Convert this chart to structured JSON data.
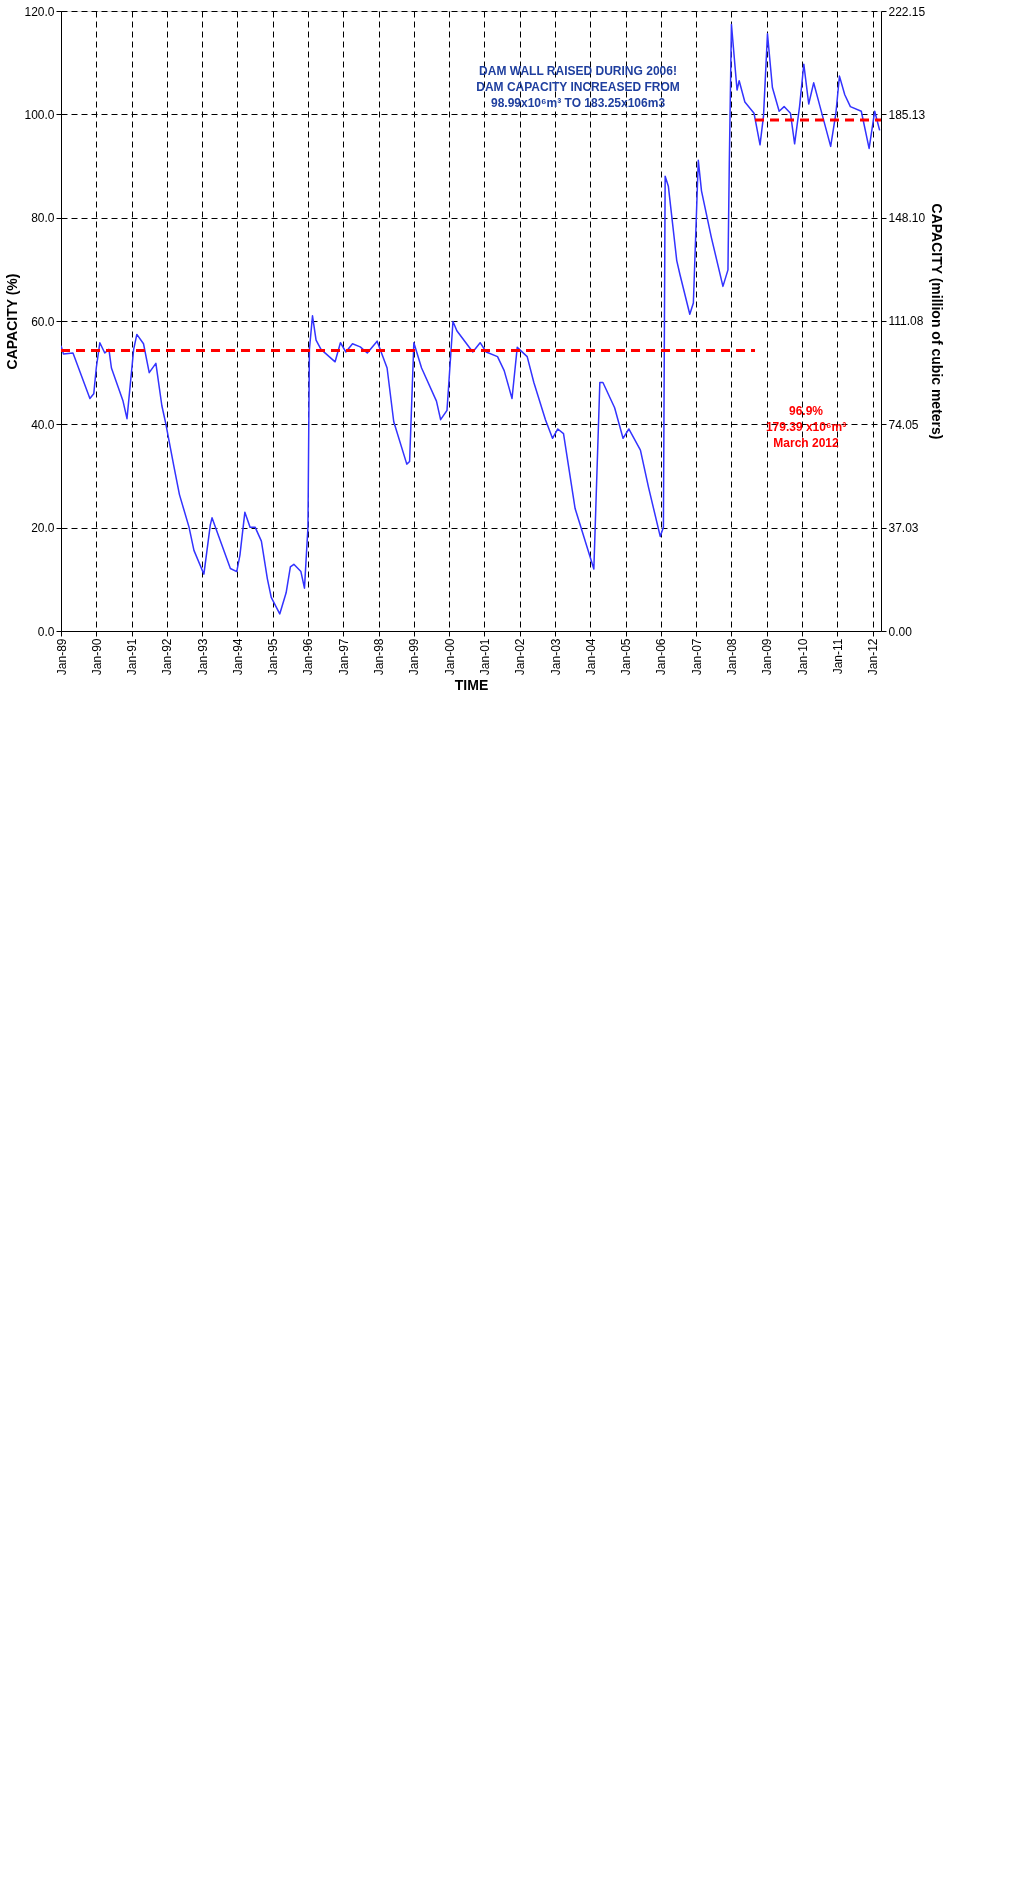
{
  "chart_data": {
    "type": "line",
    "xlabel": "TIME",
    "ylabel": "CAPACITY (%)",
    "y2label": "CAPACITY (million of cubic meters)",
    "xlim": [
      "1989-01-01",
      "2012-03-28"
    ],
    "xticks": [
      {
        "value": "1989-01-01",
        "label": "Jan-89"
      },
      {
        "value": "1990-01-01",
        "label": "Jan-90"
      },
      {
        "value": "1991-01-01",
        "label": "Jan-91"
      },
      {
        "value": "1992-01-01",
        "label": "Jan-92"
      },
      {
        "value": "1993-01-01",
        "label": "Jan-93"
      },
      {
        "value": "1994-01-01",
        "label": "Jan-94"
      },
      {
        "value": "1995-01-01",
        "label": "Jan-95"
      },
      {
        "value": "1996-01-01",
        "label": "Jan-96"
      },
      {
        "value": "1997-01-01",
        "label": "Jan-97"
      },
      {
        "value": "1998-01-01",
        "label": "Jan-98"
      },
      {
        "value": "1999-01-01",
        "label": "Jan-99"
      },
      {
        "value": "2000-01-01",
        "label": "Jan-00"
      },
      {
        "value": "2001-01-01",
        "label": "Jan-01"
      },
      {
        "value": "2002-01-01",
        "label": "Jan-02"
      },
      {
        "value": "2003-01-01",
        "label": "Jan-03"
      },
      {
        "value": "2004-01-01",
        "label": "Jan-04"
      },
      {
        "value": "2005-01-01",
        "label": "Jan-05"
      },
      {
        "value": "2006-01-01",
        "label": "Jan-06"
      },
      {
        "value": "2007-01-01",
        "label": "Jan-07"
      },
      {
        "value": "2008-01-01",
        "label": "Jan-08"
      },
      {
        "value": "2009-01-01",
        "label": "Jan-09"
      },
      {
        "value": "2010-01-01",
        "label": "Jan-10"
      },
      {
        "value": "2011-01-01",
        "label": "Jan-11"
      },
      {
        "value": "2012-01-01",
        "label": "Jan-12"
      }
    ],
    "ylim": [
      0,
      120
    ],
    "yticks": [
      {
        "value": 0,
        "label": "0.0"
      },
      {
        "value": 20,
        "label": "20.0"
      },
      {
        "value": 40,
        "label": "40.0"
      },
      {
        "value": 60,
        "label": "60.0"
      },
      {
        "value": 80,
        "label": "80.0"
      },
      {
        "value": 100,
        "label": "100.0"
      },
      {
        "value": 120,
        "label": "120.0"
      }
    ],
    "y2lim": [
      0,
      222.15
    ],
    "y2ticks": [
      {
        "value": 0,
        "label": "0.00"
      },
      37.03,
      74.05,
      111.08,
      {
        "value": 148.1,
        "label": "148.10"
      },
      185.13,
      222.15
    ],
    "grid": true,
    "series": [
      {
        "line_style": "solid",
        "color": "#3333ff",
        "x": [
          "1989-01-01",
          "1989-01-27",
          "1989-05-05",
          "1989-10-27",
          "1989-12-06",
          "1990-01-01",
          "1990-02-07",
          "1990-03-30",
          "1990-05-12",
          "1990-06-07",
          "1990-10-05",
          "1990-11-15",
          "1991-01-23",
          "1991-02-25",
          "1991-05-05",
          "1991-07-03",
          "1991-09-10",
          "1991-11-11",
          "1991-12-21",
          "1992-03-14",
          "1992-05-11",
          "1992-08-18",
          "1992-10-08",
          "1993-01-19",
          "1993-03-26",
          "1993-04-13",
          "1993-06-22",
          "1993-10-20",
          "1993-12-25",
          "1994-01-27",
          "1994-03-19",
          "1994-05-12",
          "1994-07-03",
          "1994-09-06",
          "1994-11-07",
          "1994-12-17",
          "1995-03-15",
          "1995-05-20",
          "1995-07-03",
          "1995-08-08",
          "1995-10-20",
          "1995-11-26",
          "1996-01-01",
          "1996-01-16",
          "1996-02-17",
          "1996-03-25",
          "1996-05-15",
          "1996-10-08",
          "1996-12-02",
          "1997-01-27",
          "1997-04-06",
          "1997-06-25",
          "1997-09-06",
          "1997-12-17",
          "1998-03-30",
          "1998-06-07",
          "1998-10-20",
          "1998-11-18",
          "1999-01-01",
          "1999-03-22",
          "1999-08-23",
          "1999-10-05",
          "1999-12-10",
          "2000-02-10",
          "2000-03-21",
          "2000-09-02",
          "2000-11-17",
          "2001-01-19",
          "2001-05-16",
          "2001-07-24",
          "2001-10-13",
          "2001-12-06",
          "2002-03-19",
          "2002-05-27",
          "2002-09-24",
          "2002-12-06",
          "2003-01-30",
          "2003-03-30",
          "2003-07-28",
          "2004-02-07",
          "2004-04-09",
          "2004-05-11",
          "2004-09-09",
          "2004-12-05",
          "2005-02-03",
          "2005-06-03",
          "2005-08-26",
          "2005-12-25",
          "2006-01-27",
          "2006-02-14",
          "2006-03-19",
          "2006-06-14",
          "2006-07-17",
          "2006-10-27",
          "2006-12-03",
          "2007-01-23",
          "2007-02-25",
          "2007-06-07",
          "2007-10-05",
          "2007-11-26",
          "2007-12-10",
          "2008-01-01",
          "2008-02-28",
          "2008-03-21",
          "2008-05-19",
          "2008-08-22",
          "2008-10-23",
          "2008-11-28",
          "2009-01-08",
          "2009-02-28",
          "2009-05-09",
          "2009-06-29",
          "2009-09-03",
          "2009-10-16",
          "2009-12-06",
          "2010-01-19",
          "2010-03-11",
          "2010-05-01",
          "2010-07-06",
          "2010-10-24",
          "2010-12-17",
          "2011-01-23",
          "2011-03-19",
          "2011-05-16",
          "2011-09-06",
          "2011-11-26",
          "2012-01-23",
          "2012-03-14"
        ],
        "values": [
          55.2,
          53.6,
          53.8,
          45.0,
          45.9,
          50.9,
          55.8,
          53.8,
          54.5,
          50.9,
          44.5,
          41.1,
          54.5,
          57.4,
          55.6,
          50.0,
          51.8,
          43.6,
          40.2,
          31.9,
          26.4,
          20.1,
          15.6,
          11.0,
          20.5,
          21.9,
          18.3,
          12.1,
          11.5,
          14.7,
          23.0,
          20.1,
          20.1,
          17.4,
          10.1,
          6.5,
          3.3,
          7.4,
          12.4,
          12.9,
          11.5,
          8.3,
          20.1,
          54.5,
          61.0,
          56.3,
          54.5,
          52.1,
          55.8,
          54.0,
          55.6,
          55.0,
          53.8,
          56.1,
          50.9,
          40.5,
          32.3,
          32.8,
          55.8,
          50.9,
          44.5,
          40.9,
          42.7,
          59.9,
          58.1,
          54.0,
          55.8,
          54.0,
          53.1,
          50.4,
          45.0,
          54.9,
          53.1,
          48.1,
          40.9,
          37.3,
          39.1,
          38.2,
          23.7,
          12.0,
          48.1,
          48.1,
          43.2,
          37.3,
          39.1,
          35.0,
          27.8,
          18.3,
          20.1,
          88.0,
          86.1,
          71.7,
          69.0,
          61.3,
          63.5,
          91.1,
          85.2,
          76.2,
          66.7,
          69.9,
          90.7,
          117.4,
          104.7,
          106.5,
          102.4,
          100.2,
          94.1,
          99.7,
          115.6,
          105.2,
          100.6,
          101.5,
          100.2,
          94.3,
          101.5,
          109.7,
          102.0,
          106.1,
          101.5,
          93.8,
          100.2,
          107.4,
          103.8,
          101.5,
          100.6,
          93.4,
          100.6,
          96.9
        ]
      },
      {
        "color": "#ff0000",
        "line_style": "dashed",
        "x": [
          "1989-01-01",
          "2008-09-01"
        ],
        "values": [
          54.3,
          54.3
        ]
      },
      {
        "color": "#ff0000",
        "line_style": "dashed",
        "x": [
          "2008-09-01",
          "2012-03-28"
        ],
        "values": [
          98.9,
          98.9
        ]
      }
    ],
    "annotations": [
      "DAM WALL RAISED DURING 2006!\nDAM CAPACITY INCREASED FROM\n98.99x10⁶m³ TO 183.25x106m3",
      "96.9%\n179.39 x10⁶m³\nMarch 2012"
    ]
  }
}
